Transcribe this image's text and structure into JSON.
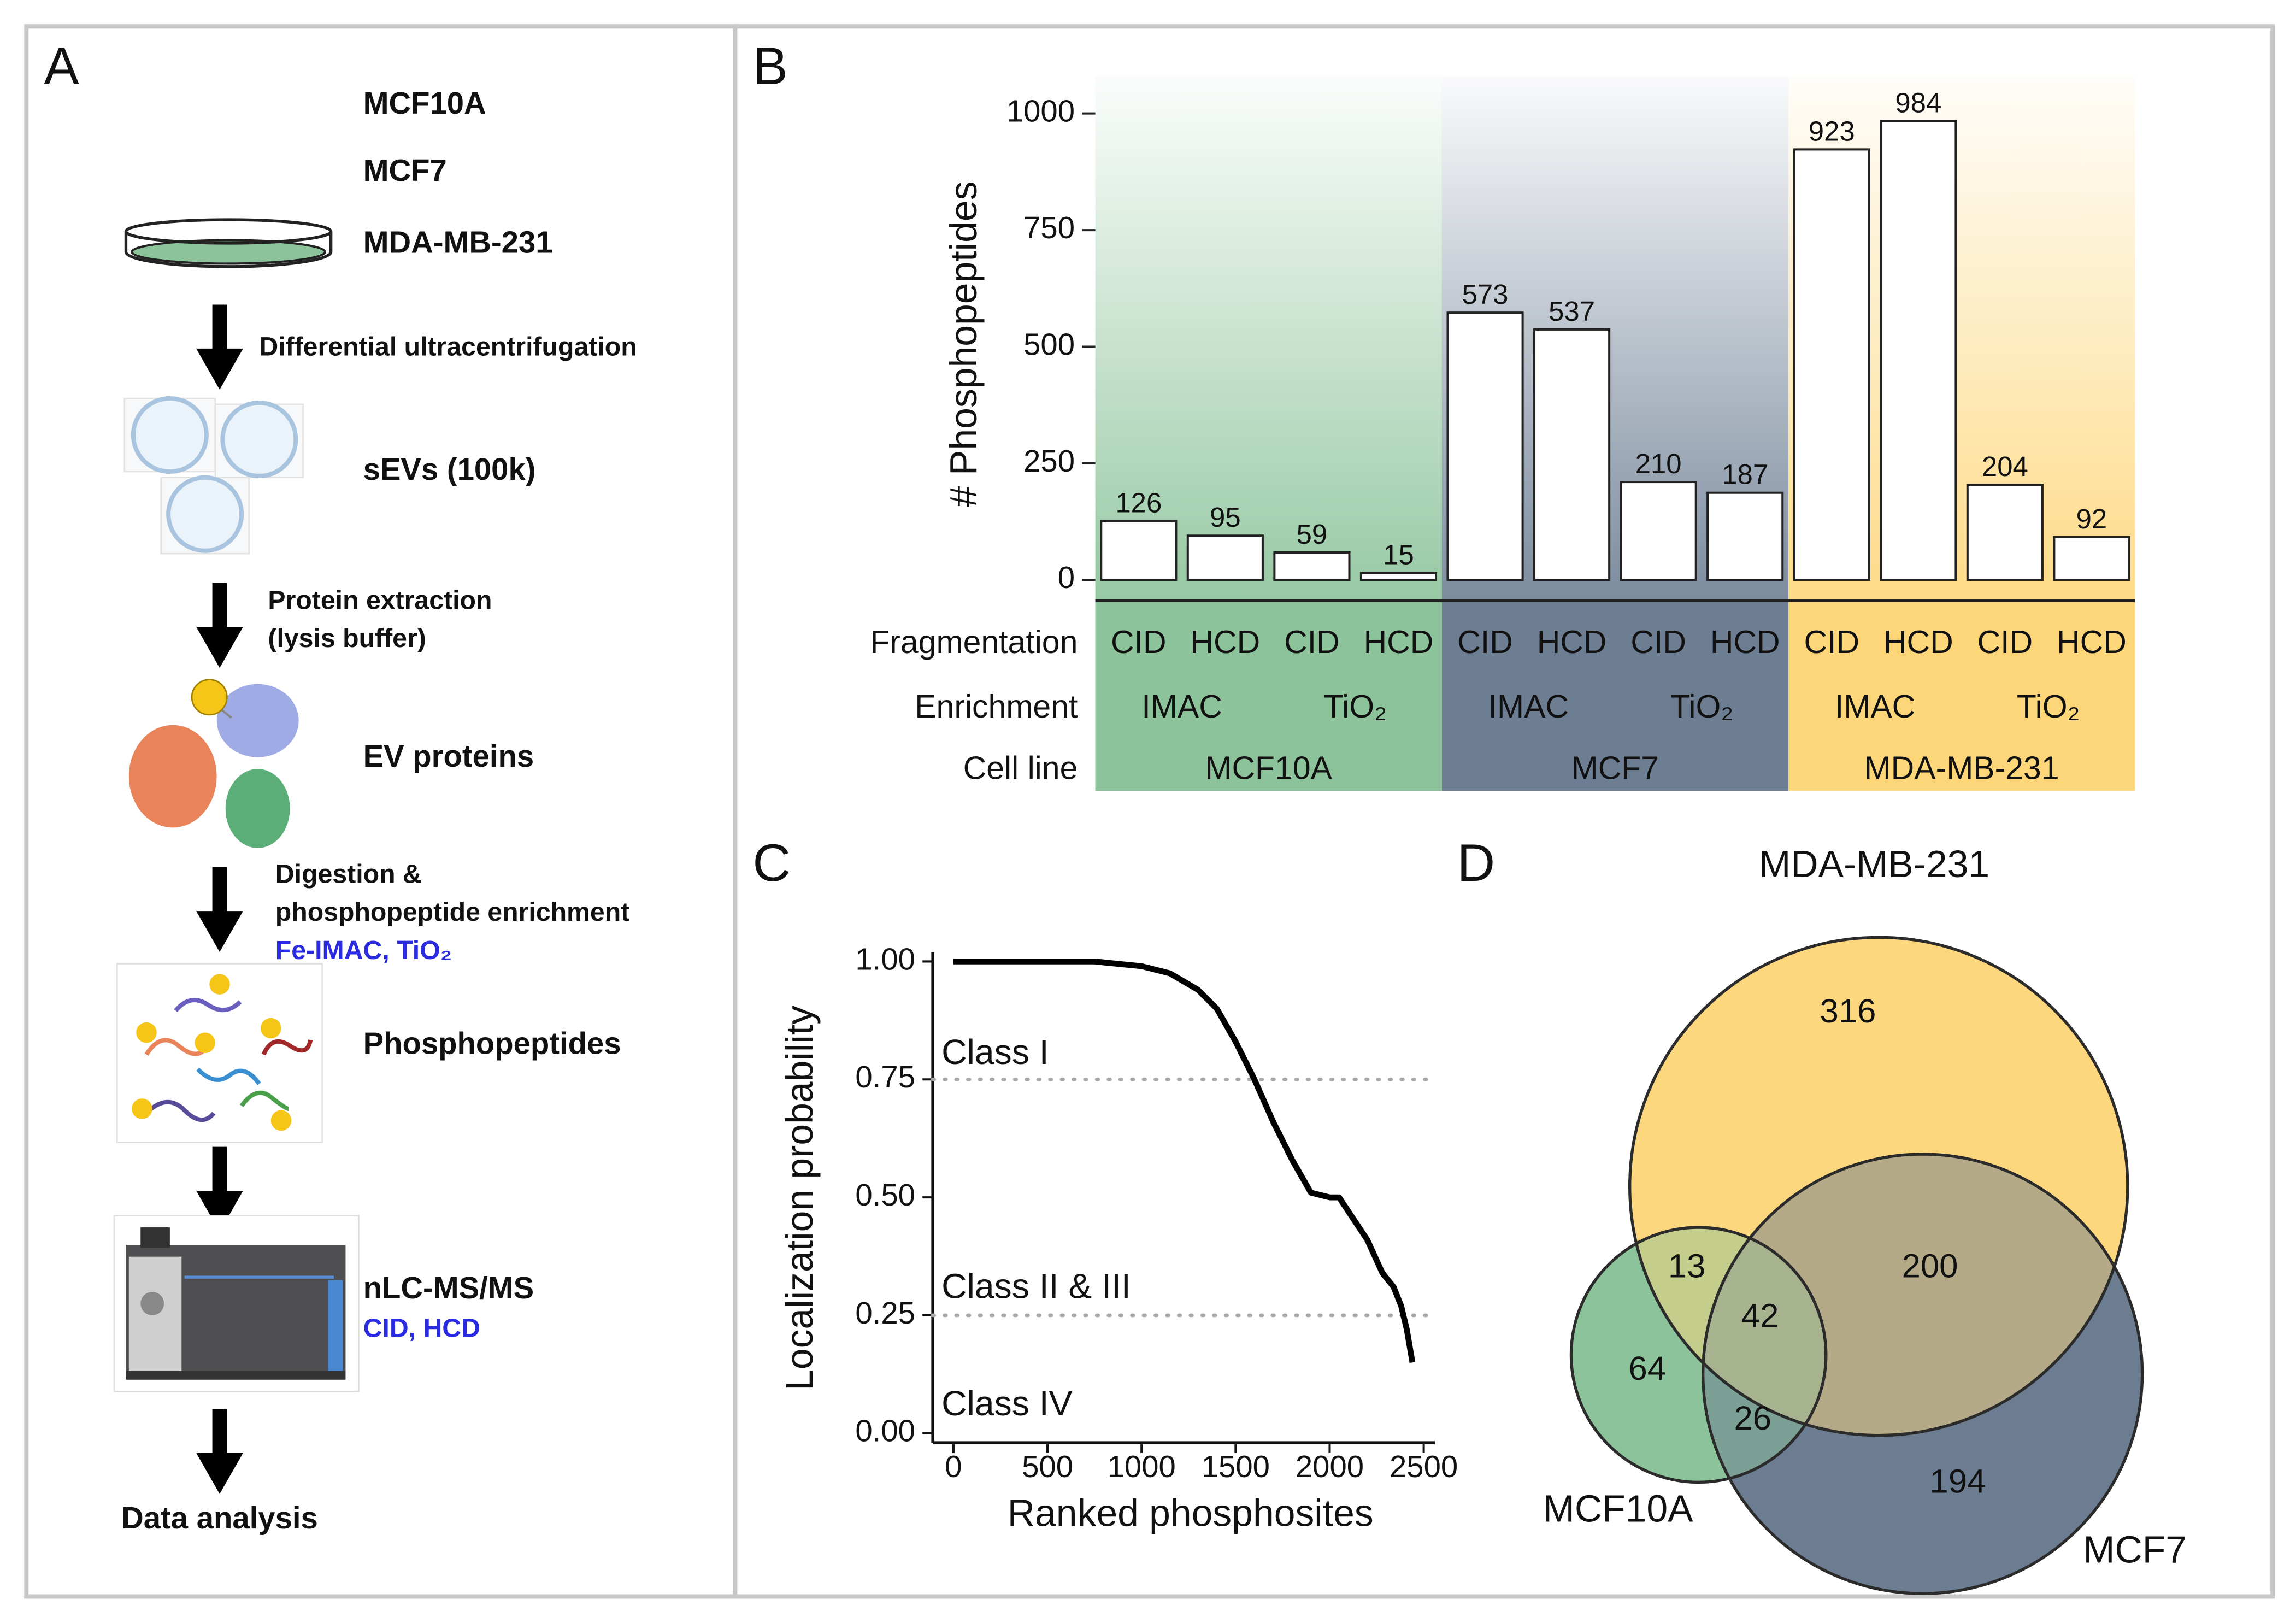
{
  "panel_labels": [
    "A",
    "B",
    "C",
    "D"
  ],
  "workflow": {
    "cell_lines": [
      "MCF10A",
      "MCF7",
      "MDA-MB-231"
    ],
    "steps": [
      {
        "method": [
          "Differential ultracentrifugation"
        ],
        "product": "sEVs (100k)"
      },
      {
        "method": [
          "Protein extraction",
          "(lysis buffer)"
        ],
        "product": "EV proteins"
      },
      {
        "method": [
          "Digestion &",
          "phosphopeptide enrichment"
        ],
        "note": "Fe-IMAC, TiO₂",
        "product": "Phosphopeptides"
      },
      {
        "product": "nLC-MS/MS",
        "product_note": "CID, HCD"
      },
      {
        "product": "Data analysis"
      }
    ]
  },
  "chart_data": [
    {
      "type": "bar",
      "ylabel": "# Phosphopeptides",
      "row_labels": [
        "Fragmentation",
        "Enrichment",
        "Cell line"
      ],
      "categories": [
        "CID",
        "HCD",
        "CID",
        "HCD",
        "CID",
        "HCD",
        "CID",
        "HCD",
        "CID",
        "HCD",
        "CID",
        "HCD"
      ],
      "values": [
        126,
        95,
        59,
        15,
        573,
        537,
        210,
        187,
        923,
        984,
        204,
        92
      ],
      "enrichment": [
        "IMAC",
        "TiO₂",
        "IMAC",
        "TiO₂",
        "IMAC",
        "TiO₂"
      ],
      "cell_lines": [
        {
          "name": "MCF10A",
          "color": "#8cc39a"
        },
        {
          "name": "MCF7",
          "color": "#6d7e93"
        },
        {
          "name": "MDA-MB-231",
          "color": "#fdd67a"
        }
      ],
      "bar_color": "#ffffff",
      "edge_color": "#222222",
      "ylim": [
        -44,
        1080
      ],
      "yticks": [
        0,
        250,
        500,
        750,
        1000
      ]
    },
    {
      "type": "line",
      "xlabel": "Ranked phosphosites",
      "ylabel": "Localization probability",
      "x": [
        0,
        500,
        750,
        1000,
        1150,
        1300,
        1400,
        1500,
        1600,
        1700,
        1800,
        1900,
        2000,
        2050,
        2100,
        2200,
        2280,
        2340,
        2380,
        2410,
        2440
      ],
      "values": [
        1.0,
        1.0,
        1.0,
        0.99,
        0.975,
        0.94,
        0.9,
        0.83,
        0.75,
        0.66,
        0.58,
        0.51,
        0.5,
        0.5,
        0.47,
        0.41,
        0.34,
        0.31,
        0.27,
        0.22,
        0.15
      ],
      "color": "#000000",
      "hlines": [
        0.75,
        0.25
      ],
      "annotations": [
        "Class I",
        "Class II & III",
        "Class IV"
      ],
      "xlim": [
        -110,
        2560
      ],
      "ylim": [
        -0.02,
        1.02
      ],
      "xticks": [
        0,
        500,
        1000,
        1500,
        2000,
        2500
      ],
      "yticks": [
        {
          "value": 0,
          "label": "0.00"
        },
        {
          "value": 0.25,
          "label": "0.25"
        },
        {
          "value": 0.5,
          "label": "0.50"
        },
        {
          "value": 0.75,
          "label": "0.75"
        },
        {
          "value": 1,
          "label": "1.00"
        }
      ]
    },
    {
      "type": "venn",
      "sets": [
        {
          "name": "MDA-MB-231",
          "color": "#fcd77e"
        },
        {
          "name": "MCF7",
          "color": "#6c7d91"
        },
        {
          "name": "MCF10A",
          "color": "#8cc39a"
        }
      ],
      "values": [
        316,
        200,
        194,
        64,
        13,
        26,
        42
      ]
    }
  ]
}
